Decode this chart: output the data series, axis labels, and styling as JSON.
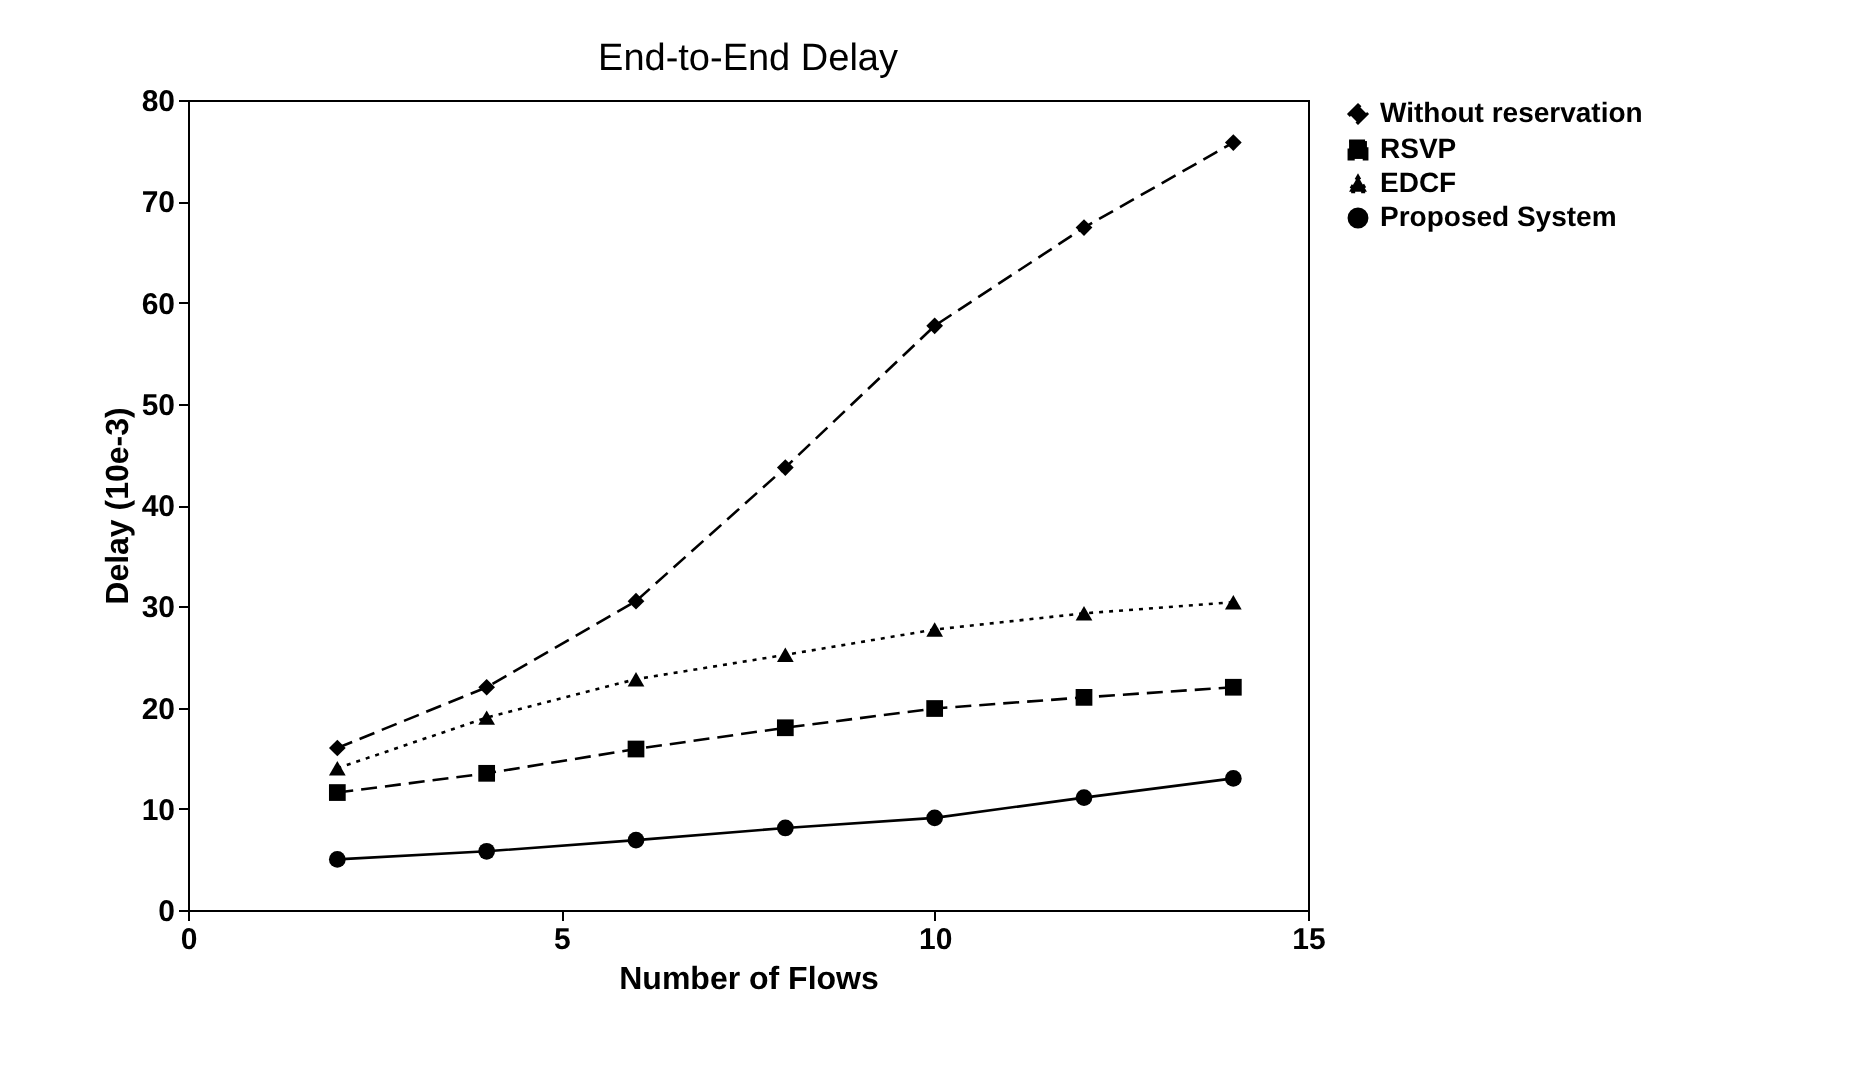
{
  "chart_data": {
    "type": "line",
    "title": "End-to-End Delay",
    "xlabel": "Number of Flows",
    "ylabel": "Delay (10e-3)",
    "x": [
      2,
      4,
      6,
      8,
      10,
      12,
      14
    ],
    "series": [
      {
        "name": "Without reservation",
        "color": "#000000",
        "marker": "diamond",
        "line_style": "dashed",
        "values": [
          16,
          22,
          30.5,
          43.7,
          57.7,
          67.4,
          75.8
        ]
      },
      {
        "name": "RSVP",
        "color": "#000000",
        "marker": "square",
        "line_style": "dashed",
        "values": [
          11.6,
          13.5,
          15.9,
          18,
          19.9,
          21,
          22
        ]
      },
      {
        "name": "EDCF",
        "color": "#000000",
        "marker": "triangle",
        "line_style": "dotted",
        "values": [
          14,
          19,
          22.8,
          25.2,
          27.7,
          29.3,
          30.4
        ]
      },
      {
        "name": "Proposed System",
        "color": "#000000",
        "marker": "circle",
        "line_style": "solid",
        "values": [
          5,
          5.8,
          6.9,
          8.1,
          9.1,
          11.1,
          13
        ]
      }
    ],
    "xlim": [
      0,
      15
    ],
    "xticks": [
      0,
      5,
      10,
      15
    ],
    "ylim": [
      0,
      80
    ],
    "yticks": [
      0,
      10,
      20,
      30,
      40,
      50,
      60,
      70,
      80
    ],
    "grid": false,
    "legend": "right"
  }
}
